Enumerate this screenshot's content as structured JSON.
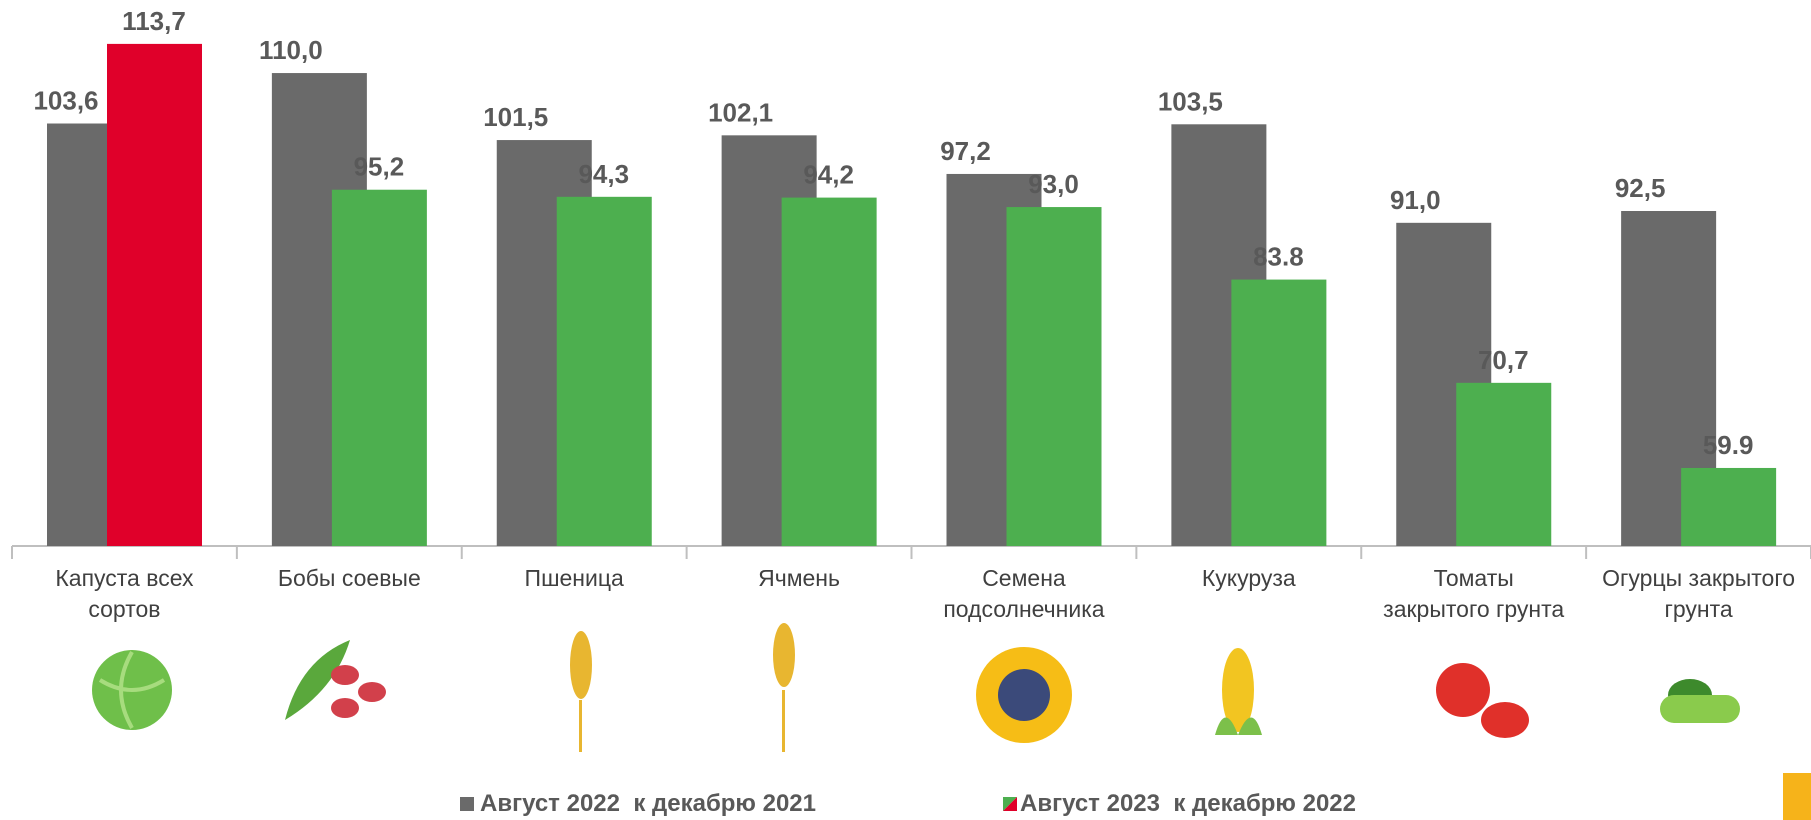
{
  "chart_data": {
    "type": "bar",
    "categories": [
      "Капуста всех\nсортов",
      "Бобы соевые",
      "Пшеница",
      "Ячмень",
      "Семена\nподсолнечника",
      "Кукуруза",
      "Томаты\nзакрытого грунта",
      "Огурцы закрытого\nгрунта"
    ],
    "series": [
      {
        "name": "Август 2022  к декабрю 2021",
        "color": "#6a6a6a",
        "values": [
          103.6,
          110.0,
          101.5,
          102.1,
          97.2,
          103.5,
          91.0,
          92.5
        ],
        "value_labels": [
          "103,6",
          "110,0",
          "101,5",
          "102,1",
          "97,2",
          "103,5",
          "91,0",
          "92,5"
        ]
      },
      {
        "name": "Август 2023  к декабрю 2022",
        "color": "#4daf4f",
        "colors": [
          "#e0002a",
          "#4daf4f",
          "#4daf4f",
          "#4daf4f",
          "#4daf4f",
          "#4daf4f",
          "#4daf4f",
          "#4daf4f"
        ],
        "values": [
          113.7,
          95.2,
          94.3,
          94.2,
          93.0,
          83.8,
          70.7,
          59.9
        ],
        "value_labels": [
          "113,7",
          "95,2",
          "94,3",
          "94,2",
          "93,0",
          "83.8",
          "70,7",
          "59.9"
        ]
      }
    ],
    "ylim": [
      50,
      118
    ]
  }
}
